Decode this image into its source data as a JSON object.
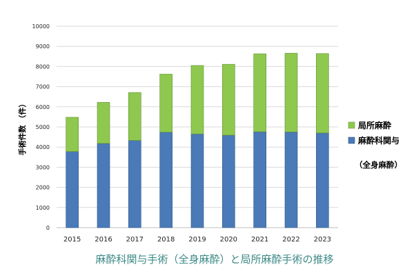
{
  "chart_data": {
    "type": "bar",
    "stacked": true,
    "categories": [
      "2015",
      "2016",
      "2017",
      "2018",
      "2019",
      "2020",
      "2021",
      "2022",
      "2023"
    ],
    "series": [
      {
        "name": "麻酔科関与",
        "color": "#4a7ab7",
        "values": [
          3780,
          4180,
          4330,
          4740,
          4650,
          4590,
          4760,
          4750,
          4700
        ]
      },
      {
        "name": "局所麻酔",
        "color": "#8fc84f",
        "values": [
          1700,
          2040,
          2380,
          2880,
          3400,
          3520,
          3870,
          3910,
          3940
        ]
      }
    ],
    "ylabel": "手術件数 （件）",
    "ylim": [
      0,
      10000
    ],
    "yticks": [
      0,
      1000,
      2000,
      3000,
      4000,
      5000,
      6000,
      7000,
      8000,
      9000,
      10000
    ],
    "grid": true,
    "legend_position": "right",
    "legend_note": "（全身麻酔）",
    "caption": "麻酔科関与手術（全身麻酔）と局所麻酔手術の推移"
  }
}
